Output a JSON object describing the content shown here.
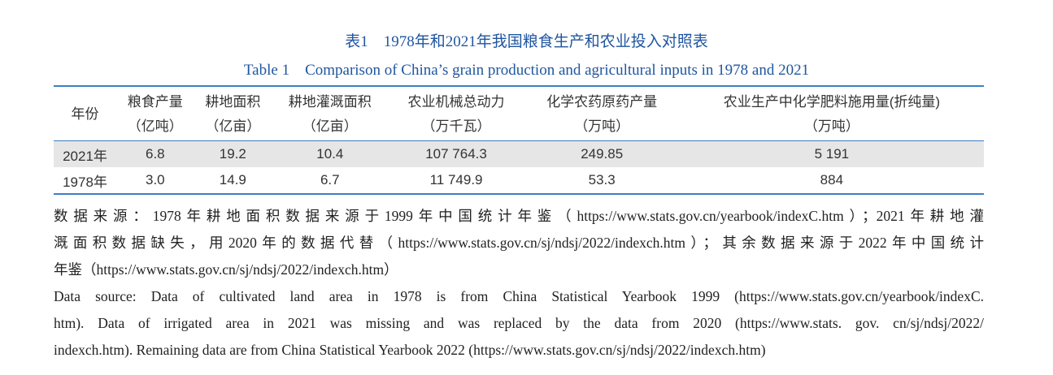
{
  "title_cn": "表1　1978年和2021年我国粮食生产和农业投入对照表",
  "title_en": "Table 1　Comparison of China’s grain production and agricultural inputs in 1978 and 2021",
  "table": {
    "header": [
      {
        "label": "年份"
      },
      {
        "label": "粮食产量",
        "unit": "（亿吨）"
      },
      {
        "label": "耕地面积",
        "unit": "（亿亩）"
      },
      {
        "label": "耕地灌溉面积",
        "unit": "（亿亩）"
      },
      {
        "label": "农业机械总动力",
        "unit": "（万千瓦）"
      },
      {
        "label": "化学农药原药产量",
        "unit": "（万吨）"
      },
      {
        "label": "农业生产中化学肥料施用量(折纯量)",
        "unit": "（万吨）"
      }
    ],
    "rows": [
      [
        "2021年",
        "6.8",
        "19.2",
        "10.4",
        "107 764.3",
        "249.85",
        "5 191"
      ],
      [
        "1978年",
        "3.0",
        "14.9",
        "6.7",
        "11 749.9",
        "53.3",
        "884"
      ]
    ]
  },
  "notes_cn": [
    "数据来源：1978年耕地面积数据来源于1999年中国统计年鉴（https://www.stats.gov.cn/yearbook/indexC.htm）；2021年耕地灌",
    "溉面积数据缺失，用2020年的数据代替（https://www.stats.gov.cn/sj/ndsj/2022/indexch.htm）；其余数据来源于2022年中国统计",
    "年鉴（https://www.stats.gov.cn/sj/ndsj/2022/indexch.htm）"
  ],
  "notes_en": [
    "Data source: Data of cultivated land area in 1978 is from China Statistical Yearbook 1999 (https://www.stats.gov.cn/yearbook/indexC.",
    "htm). Data of irrigated area in 2021 was missing and was replaced by the data from 2020 (https://www.stats. gov. cn/sj/ndsj/2022/",
    "indexch.htm). Remaining data are from China Statistical Yearbook 2022 (https://www.stats.gov.cn/sj/ndsj/2022/indexch.htm)"
  ]
}
